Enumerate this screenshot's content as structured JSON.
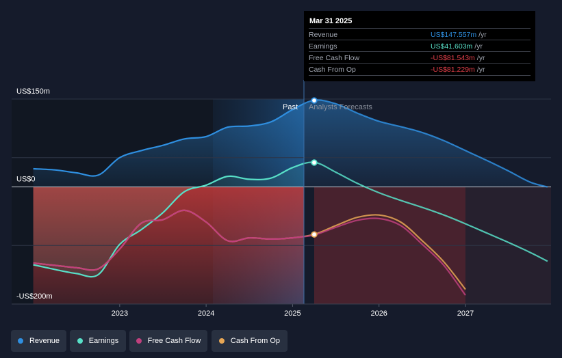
{
  "chart_data": {
    "type": "line",
    "title": "",
    "xlabel": "",
    "ylabel": "",
    "ylim": [
      -200,
      150
    ],
    "y_ticks": [
      {
        "value": 150,
        "label": "US$150m"
      },
      {
        "value": 0,
        "label": "US$0"
      },
      {
        "value": -200,
        "label": "-US$200m"
      }
    ],
    "x_ticks": [
      {
        "value": 2023,
        "label": "2023"
      },
      {
        "value": 2024,
        "label": "2024"
      },
      {
        "value": 2025,
        "label": "2025"
      },
      {
        "value": 2026,
        "label": "2026"
      },
      {
        "value": 2027,
        "label": "2027"
      }
    ],
    "xlim": [
      2021.75,
      2027.99
    ],
    "past_forecast_boundary": 2025.25,
    "period_labels": {
      "past": "Past",
      "forecast": "Analysts Forecasts"
    },
    "series": [
      {
        "name": "Revenue",
        "color": "#2f8fe0",
        "points": [
          [
            2022.0,
            31
          ],
          [
            2022.25,
            29
          ],
          [
            2022.5,
            24
          ],
          [
            2022.75,
            20
          ],
          [
            2023.0,
            50
          ],
          [
            2023.25,
            62
          ],
          [
            2023.5,
            71
          ],
          [
            2023.75,
            82
          ],
          [
            2024.0,
            86
          ],
          [
            2024.25,
            102
          ],
          [
            2024.5,
            104
          ],
          [
            2024.75,
            111
          ],
          [
            2025.0,
            132
          ],
          [
            2025.25,
            148
          ],
          [
            2025.5,
            142
          ],
          [
            2025.75,
            126
          ],
          [
            2026.0,
            112
          ],
          [
            2026.25,
            103
          ],
          [
            2026.5,
            93
          ],
          [
            2026.75,
            79
          ],
          [
            2027.0,
            62
          ],
          [
            2027.25,
            45
          ],
          [
            2027.5,
            27
          ],
          [
            2027.75,
            8
          ],
          [
            2027.95,
            0
          ]
        ]
      },
      {
        "name": "Earnings",
        "color": "#58e0c8",
        "points": [
          [
            2022.0,
            -133
          ],
          [
            2022.25,
            -141
          ],
          [
            2022.5,
            -148
          ],
          [
            2022.75,
            -150
          ],
          [
            2023.0,
            -98
          ],
          [
            2023.25,
            -73
          ],
          [
            2023.5,
            -44
          ],
          [
            2023.75,
            -8
          ],
          [
            2024.0,
            3
          ],
          [
            2024.25,
            18
          ],
          [
            2024.5,
            13
          ],
          [
            2024.75,
            15
          ],
          [
            2025.0,
            33
          ],
          [
            2025.25,
            42
          ],
          [
            2025.5,
            25
          ],
          [
            2025.75,
            6
          ],
          [
            2026.0,
            -10
          ],
          [
            2026.25,
            -23
          ],
          [
            2026.5,
            -35
          ],
          [
            2026.75,
            -48
          ],
          [
            2027.0,
            -63
          ],
          [
            2027.25,
            -79
          ],
          [
            2027.5,
            -95
          ],
          [
            2027.75,
            -112
          ],
          [
            2027.95,
            -127
          ]
        ]
      },
      {
        "name": "Free Cash Flow",
        "color": "#c0407d",
        "points": [
          [
            2022.0,
            -130
          ],
          [
            2022.25,
            -134
          ],
          [
            2022.5,
            -138
          ],
          [
            2022.75,
            -140
          ],
          [
            2023.0,
            -106
          ],
          [
            2023.25,
            -62
          ],
          [
            2023.5,
            -56
          ],
          [
            2023.75,
            -40
          ],
          [
            2024.0,
            -60
          ],
          [
            2024.25,
            -92
          ],
          [
            2024.5,
            -87
          ],
          [
            2024.75,
            -89
          ],
          [
            2025.0,
            -87
          ],
          [
            2025.25,
            -82
          ],
          [
            2025.5,
            -69
          ],
          [
            2025.75,
            -57
          ],
          [
            2026.0,
            -54
          ],
          [
            2026.25,
            -66
          ],
          [
            2026.5,
            -98
          ],
          [
            2026.75,
            -134
          ],
          [
            2027.0,
            -185
          ]
        ]
      },
      {
        "name": "Cash From Op",
        "color": "#e8a755",
        "points": [
          [
            2022.0,
            -130
          ],
          [
            2022.25,
            -134
          ],
          [
            2022.5,
            -138
          ],
          [
            2022.75,
            -140
          ],
          [
            2023.0,
            -106
          ],
          [
            2023.25,
            -62
          ],
          [
            2023.5,
            -56
          ],
          [
            2023.75,
            -40
          ],
          [
            2024.0,
            -60
          ],
          [
            2024.25,
            -92
          ],
          [
            2024.5,
            -87
          ],
          [
            2024.75,
            -89
          ],
          [
            2025.0,
            -87
          ],
          [
            2025.25,
            -81
          ],
          [
            2025.5,
            -66
          ],
          [
            2025.75,
            -52
          ],
          [
            2026.0,
            -48
          ],
          [
            2026.25,
            -60
          ],
          [
            2026.5,
            -92
          ],
          [
            2026.75,
            -128
          ],
          [
            2027.0,
            -175
          ]
        ]
      }
    ],
    "highlight_points": [
      {
        "series": "Revenue",
        "x": 2025.25,
        "y": 147.557
      },
      {
        "series": "Earnings",
        "x": 2025.25,
        "y": 41.603
      },
      {
        "series": "Cash From Op",
        "x": 2025.25,
        "y": -81.229
      }
    ]
  },
  "tooltip": {
    "date": "Mar 31 2025",
    "unit": "/yr",
    "rows": [
      {
        "label": "Revenue",
        "value": "US$147.557m",
        "color": "#2f8fe0"
      },
      {
        "label": "Earnings",
        "value": "US$41.603m",
        "color": "#58e0c8"
      },
      {
        "label": "Free Cash Flow",
        "value": "-US$81.543m",
        "color": "#e8414b"
      },
      {
        "label": "Cash From Op",
        "value": "-US$81.229m",
        "color": "#e8414b"
      }
    ]
  },
  "legend": [
    {
      "label": "Revenue",
      "color": "#2f8fe0"
    },
    {
      "label": "Earnings",
      "color": "#58e0c8"
    },
    {
      "label": "Free Cash Flow",
      "color": "#c0407d"
    },
    {
      "label": "Cash From Op",
      "color": "#e8a755"
    }
  ]
}
